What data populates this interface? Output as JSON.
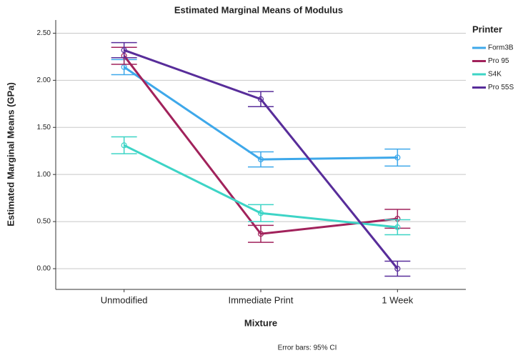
{
  "chart_data": {
    "type": "line",
    "title": "Estimated Marginal Means of Modulus",
    "x_label": "Mixture",
    "y_label": "Estimated Marginal Means (GPa)",
    "footnote": "Error bars: 95% CI",
    "legend_title": "Printer",
    "legend_position": "right",
    "grid": true,
    "categories": [
      "Unmodified",
      "Immediate Print",
      "1 Week"
    ],
    "ylim": [
      -0.22,
      2.64
    ],
    "yticks": [
      {
        "value": 0,
        "label": "0.00"
      },
      {
        "value": 0.5,
        "label": "0.50"
      },
      {
        "value": 1,
        "label": "1.00"
      },
      {
        "value": 1.5,
        "label": "1.50"
      },
      {
        "value": 2,
        "label": "2.00"
      },
      {
        "value": 2.5,
        "label": "2.50"
      }
    ],
    "series": [
      {
        "name": "Form3B",
        "color": "#3ea8ea",
        "values": [
          2.14,
          1.16,
          1.18
        ],
        "errors": [
          0.08,
          0.08,
          0.09
        ]
      },
      {
        "name": "Pro 95",
        "color": "#a1225b",
        "values": [
          2.26,
          0.37,
          0.53
        ],
        "errors": [
          0.09,
          0.09,
          0.1
        ]
      },
      {
        "name": "S4K",
        "color": "#3dd4c6",
        "values": [
          1.31,
          0.59,
          0.44
        ],
        "errors": [
          0.09,
          0.09,
          0.08
        ]
      },
      {
        "name": "Pro 55S",
        "color": "#582d9a",
        "values": [
          2.32,
          1.8,
          0.0
        ],
        "errors": [
          0.08,
          0.08,
          0.08
        ]
      }
    ]
  }
}
